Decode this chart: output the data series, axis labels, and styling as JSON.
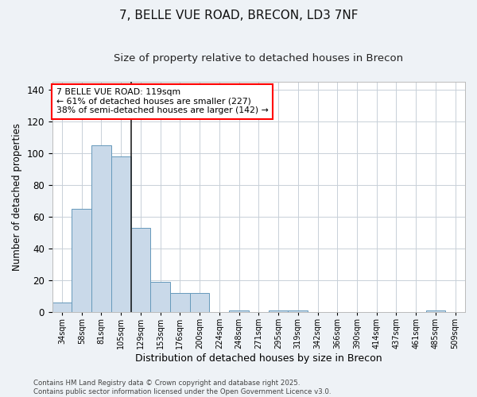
{
  "title": "7, BELLE VUE ROAD, BRECON, LD3 7NF",
  "subtitle": "Size of property relative to detached houses in Brecon",
  "xlabel": "Distribution of detached houses by size in Brecon",
  "ylabel": "Number of detached properties",
  "bar_labels": [
    "34sqm",
    "58sqm",
    "81sqm",
    "105sqm",
    "129sqm",
    "153sqm",
    "176sqm",
    "200sqm",
    "224sqm",
    "248sqm",
    "271sqm",
    "295sqm",
    "319sqm",
    "342sqm",
    "366sqm",
    "390sqm",
    "414sqm",
    "437sqm",
    "461sqm",
    "485sqm",
    "509sqm"
  ],
  "bar_values": [
    6,
    65,
    105,
    98,
    53,
    19,
    12,
    12,
    0,
    1,
    0,
    1,
    1,
    0,
    0,
    0,
    0,
    0,
    0,
    1,
    0
  ],
  "bar_color": "#c9d9e9",
  "bar_edge_color": "#6699bb",
  "ylim": [
    0,
    145
  ],
  "yticks": [
    0,
    20,
    40,
    60,
    80,
    100,
    120,
    140
  ],
  "annotation_text": "7 BELLE VUE ROAD: 119sqm\n← 61% of detached houses are smaller (227)\n38% of semi-detached houses are larger (142) →",
  "annotation_box_facecolor": "white",
  "annotation_box_edgecolor": "red",
  "vline_x_index": 4,
  "footer_line1": "Contains HM Land Registry data © Crown copyright and database right 2025.",
  "footer_line2": "Contains public sector information licensed under the Open Government Licence v3.0.",
  "bg_color": "#eef2f6",
  "plot_bg_color": "white",
  "grid_color": "#c8d0d8",
  "title_fontsize": 11,
  "subtitle_fontsize": 9.5
}
